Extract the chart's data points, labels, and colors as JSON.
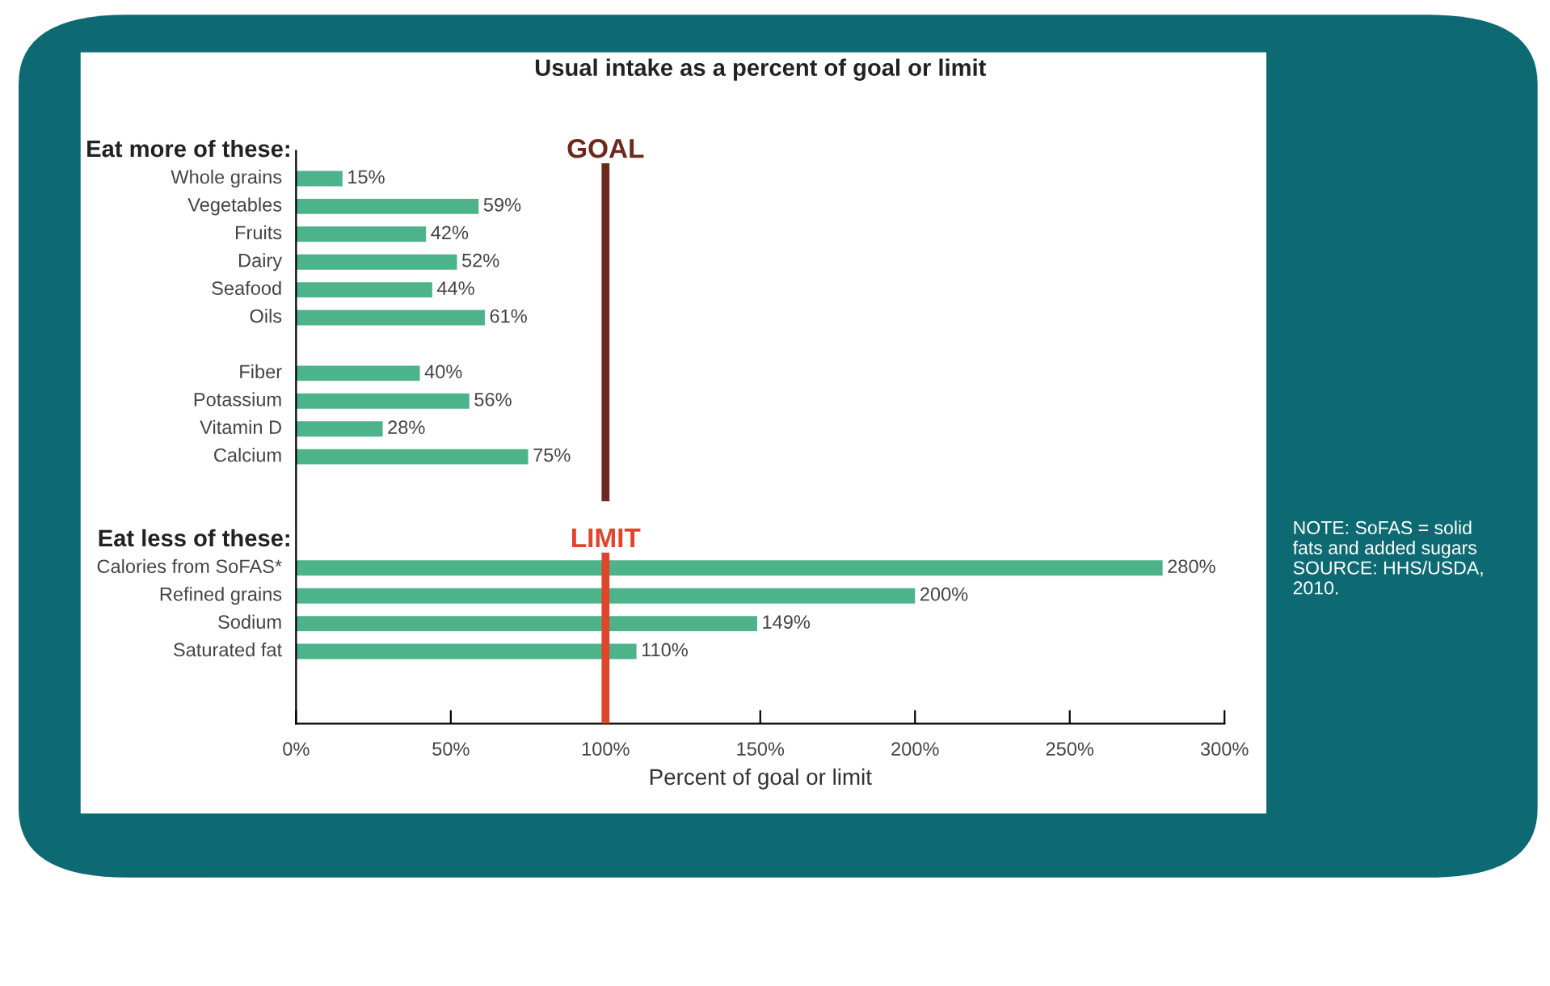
{
  "chart_data": {
    "type": "bar",
    "orientation": "horizontal",
    "title": "Usual intake as a percent of goal or limit",
    "xlabel": "Percent of goal or limit",
    "categories": [
      null,
      "Whole grains",
      "Vegetables",
      "Fruits",
      "Dairy",
      "Seafood",
      "Oils",
      null,
      "Fiber",
      "Potassium",
      "Vitamin D",
      "Calcium",
      null,
      null,
      null,
      "Calories from SoFAS*",
      "Refined grains",
      "Sodium",
      "Saturated fat"
    ],
    "values": [
      null,
      15,
      59,
      42,
      52,
      44,
      61,
      null,
      40,
      56,
      28,
      75,
      null,
      null,
      null,
      280,
      200,
      149,
      110
    ],
    "value_labels": [
      null,
      "15%",
      "59%",
      "42%",
      "52%",
      "44%",
      "61%",
      null,
      "40%",
      "56%",
      "28%",
      "75%",
      null,
      null,
      null,
      "280%",
      "200%",
      "149%",
      "110%"
    ],
    "color": "#4db38a",
    "xlim": [
      0,
      300
    ],
    "xticks": [
      {
        "value": 0,
        "label": "0%"
      },
      {
        "value": 50,
        "label": "50%"
      },
      {
        "value": 100,
        "label": "100%"
      },
      {
        "value": 150,
        "label": "150%"
      },
      {
        "value": 200,
        "label": "200%"
      },
      {
        "value": 250,
        "label": "250%"
      },
      {
        "value": 300,
        "label": "300%"
      }
    ],
    "tick_labels": "x",
    "grid": false,
    "legend": false,
    "ref_lines": [
      {
        "axis": "x",
        "value": 100,
        "label": "GOAL",
        "color": "#6b2a1e"
      },
      {
        "axis": "x",
        "value": 100,
        "label": "LIMIT",
        "color": "#e0452a"
      }
    ],
    "annotations": [
      "Eat more of these:",
      "Eat less of these:",
      "NOTE: SoFAS = solid\nfats and added sugars\nSOURCE: HHS/USDA,\n2010."
    ]
  }
}
